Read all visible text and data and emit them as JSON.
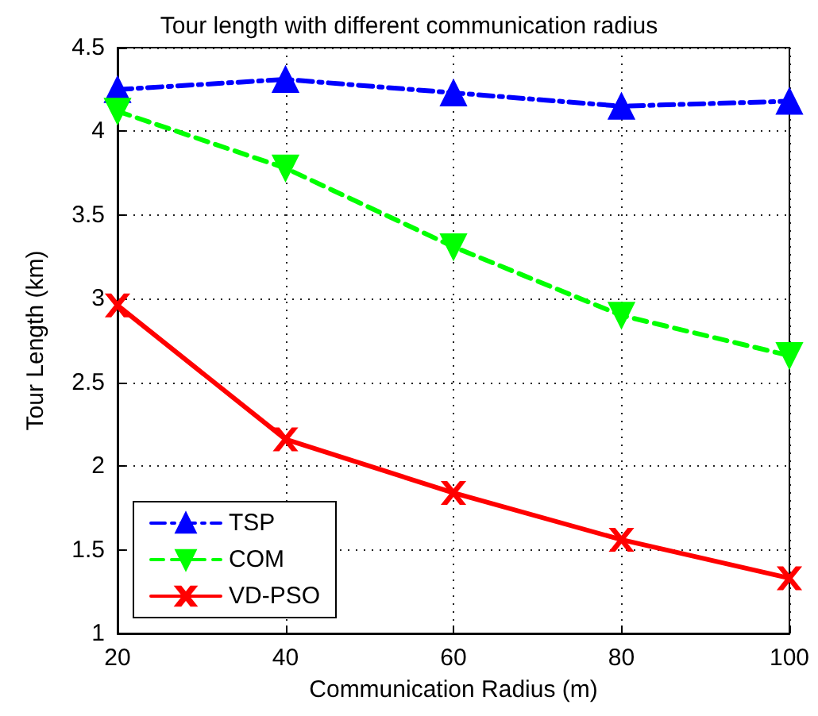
{
  "chart_data": {
    "type": "line",
    "title": "Tour length with different communication radius",
    "xlabel": "Communication Radius (m)",
    "ylabel": "Tour Length (km)",
    "x": [
      20,
      40,
      60,
      80,
      100
    ],
    "xlim": [
      20,
      100
    ],
    "xticks": [
      20,
      40,
      60,
      80,
      100
    ],
    "ylim": [
      1,
      4.5
    ],
    "yticks": [
      1,
      1.5,
      2,
      2.5,
      3,
      3.5,
      4,
      4.5
    ],
    "grid": true,
    "legend": "bottom left",
    "series": [
      {
        "name": "TSP",
        "color": "#0000ff",
        "marker": "triangle",
        "line_style": "dashdot",
        "values": [
          4.25,
          4.31,
          4.23,
          4.15,
          4.18
        ]
      },
      {
        "name": "COM",
        "color": "#00ff00",
        "marker": "triangle-down",
        "line_style": "dashed",
        "values": [
          4.12,
          3.78,
          3.31,
          2.9,
          2.66
        ]
      },
      {
        "name": "VD-PSO",
        "color": "#ff0000",
        "marker": "cross",
        "line_style": "solid",
        "values": [
          2.96,
          2.16,
          1.84,
          1.56,
          1.33
        ]
      }
    ]
  }
}
